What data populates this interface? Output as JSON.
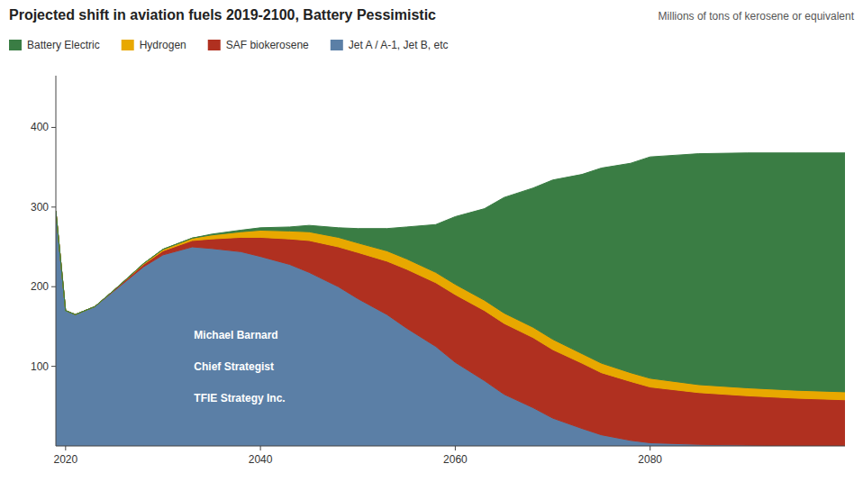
{
  "chart_data": {
    "type": "area",
    "stacked": true,
    "title": "Projected shift in aviation fuels 2019-2100, Battery Pessimistic",
    "subtitle": "Millions of tons of kerosene or equivalent",
    "x": [
      2019,
      2020,
      2021,
      2023,
      2025,
      2028,
      2030,
      2033,
      2035,
      2038,
      2040,
      2043,
      2045,
      2048,
      2050,
      2053,
      2055,
      2058,
      2060,
      2063,
      2065,
      2068,
      2070,
      2073,
      2075,
      2078,
      2080,
      2085,
      2090,
      2095,
      2100
    ],
    "series": [
      {
        "name": "Jet A / A-1, Jet B, etc",
        "color": "#5b7fa6",
        "values": [
          295,
          170,
          165,
          175,
          195,
          225,
          240,
          250,
          248,
          244,
          238,
          228,
          218,
          200,
          185,
          165,
          148,
          125,
          105,
          82,
          65,
          48,
          35,
          22,
          14,
          7,
          4,
          2,
          1,
          0,
          0
        ]
      },
      {
        "name": "SAF biokerosene",
        "color": "#b03020",
        "values": [
          0,
          0,
          0,
          0,
          1,
          3,
          5,
          8,
          12,
          18,
          24,
          32,
          40,
          50,
          58,
          67,
          74,
          80,
          85,
          88,
          89,
          88,
          86,
          82,
          78,
          74,
          70,
          65,
          62,
          60,
          58
        ]
      },
      {
        "name": "Hydrogen",
        "color": "#e8a800",
        "values": [
          0,
          0,
          0,
          0,
          0,
          1,
          2,
          3,
          5,
          7,
          9,
          10,
          11,
          12,
          12,
          13,
          13,
          13,
          13,
          13,
          13,
          13,
          13,
          12,
          12,
          11,
          11,
          10,
          10,
          10,
          10
        ]
      },
      {
        "name": "Battery Electric",
        "color": "#3a7d44",
        "values": [
          0,
          0,
          0,
          0,
          0,
          0,
          0,
          0,
          1,
          2,
          3,
          5,
          8,
          12,
          18,
          28,
          40,
          60,
          85,
          115,
          145,
          175,
          200,
          225,
          245,
          263,
          278,
          290,
          295,
          298,
          300
        ]
      }
    ],
    "annotations": [
      "Michael Barnard",
      "Chief Strategist",
      "TFIE Strategy Inc."
    ],
    "xlim": [
      2019,
      2100
    ],
    "xticks": [
      2020,
      2040,
      2060,
      2080
    ],
    "ylim": [
      0,
      465
    ],
    "yticks": [
      100,
      200,
      300,
      400
    ],
    "grid": false,
    "legend": "top-left"
  }
}
